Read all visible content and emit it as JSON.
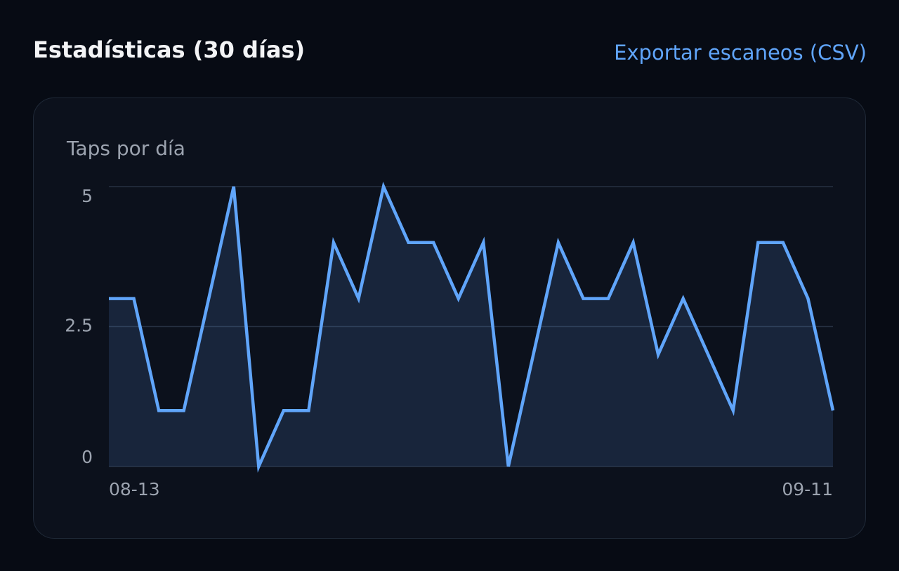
{
  "header": {
    "title": "Estadísticas (30 días)",
    "link": "Exportar escaneos (CSV)"
  },
  "chart_data": {
    "type": "line",
    "title": "Taps por día",
    "categories": [
      "08-13",
      null,
      null,
      null,
      null,
      null,
      null,
      null,
      null,
      null,
      null,
      null,
      null,
      null,
      null,
      null,
      null,
      null,
      null,
      null,
      null,
      null,
      null,
      null,
      null,
      null,
      null,
      null,
      null,
      "09-11"
    ],
    "values": [
      3,
      3,
      1,
      1,
      3,
      5,
      0,
      1,
      1,
      4,
      3,
      5,
      4,
      4,
      3,
      4,
      0,
      2,
      4,
      3,
      3,
      4,
      2,
      3,
      2,
      1,
      4,
      4,
      3,
      1
    ],
    "color": "#60a5fa",
    "ylim": [
      0,
      5
    ],
    "yticks": [
      0,
      2.5,
      5
    ],
    "grid": true
  }
}
